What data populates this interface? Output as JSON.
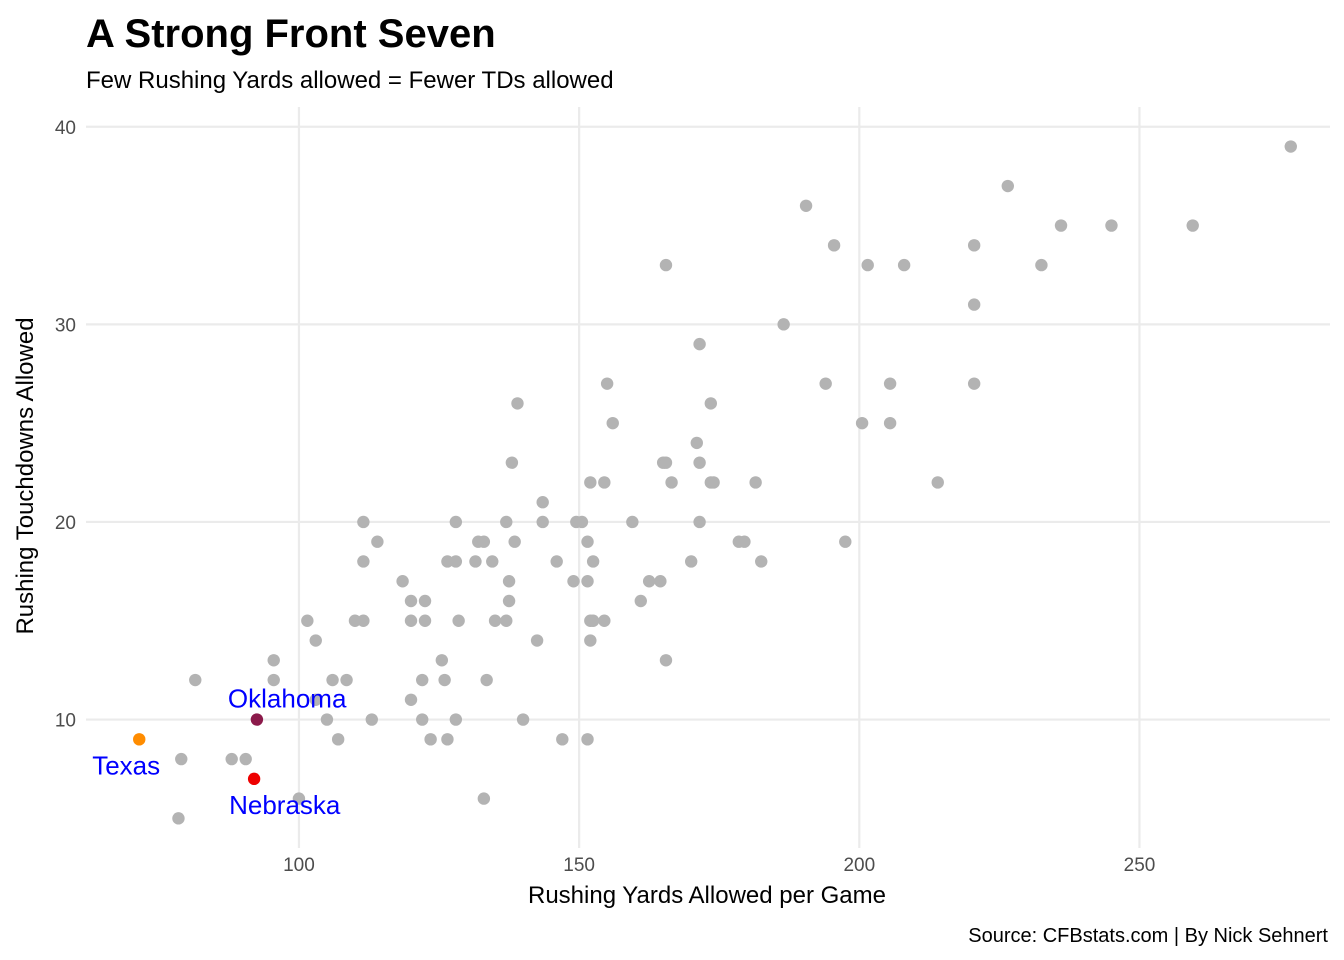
{
  "chart_data": {
    "type": "scatter",
    "title": "A Strong Front Seven",
    "subtitle": "Few Rushing Yards allowed = Fewer TDs allowed",
    "xlabel": "Rushing Yards Allowed per Game",
    "ylabel": "Rushing Touchdowns Allowed",
    "caption": "Source: CFBstats.com | By Nick Sehnert",
    "xlim": [
      62,
      284
    ],
    "ylim": [
      3.5,
      41
    ],
    "x_ticks": [
      100,
      150,
      200,
      250
    ],
    "y_ticks": [
      10,
      20,
      30,
      40
    ],
    "grid": true,
    "default_color": "#b3b3b3",
    "label_color": "#0000ff",
    "points": [
      {
        "x": 277,
        "y": 39
      },
      {
        "x": 226.5,
        "y": 37
      },
      {
        "x": 190.5,
        "y": 36
      },
      {
        "x": 236,
        "y": 35
      },
      {
        "x": 245,
        "y": 35
      },
      {
        "x": 259.5,
        "y": 35
      },
      {
        "x": 195.5,
        "y": 34
      },
      {
        "x": 220.5,
        "y": 34
      },
      {
        "x": 165.5,
        "y": 33
      },
      {
        "x": 201.5,
        "y": 33
      },
      {
        "x": 208,
        "y": 33
      },
      {
        "x": 232.5,
        "y": 33
      },
      {
        "x": 220.5,
        "y": 31
      },
      {
        "x": 186.5,
        "y": 30
      },
      {
        "x": 171.5,
        "y": 29
      },
      {
        "x": 155,
        "y": 27
      },
      {
        "x": 194,
        "y": 27
      },
      {
        "x": 205.5,
        "y": 27
      },
      {
        "x": 220.5,
        "y": 27
      },
      {
        "x": 139,
        "y": 26
      },
      {
        "x": 173.5,
        "y": 26
      },
      {
        "x": 156,
        "y": 25
      },
      {
        "x": 200.5,
        "y": 25
      },
      {
        "x": 205.5,
        "y": 25
      },
      {
        "x": 171,
        "y": 24
      },
      {
        "x": 138,
        "y": 23
      },
      {
        "x": 165,
        "y": 23
      },
      {
        "x": 165.5,
        "y": 23
      },
      {
        "x": 171.5,
        "y": 23
      },
      {
        "x": 152,
        "y": 22
      },
      {
        "x": 154.5,
        "y": 22
      },
      {
        "x": 166.5,
        "y": 22
      },
      {
        "x": 173.5,
        "y": 22
      },
      {
        "x": 174,
        "y": 22
      },
      {
        "x": 181.5,
        "y": 22
      },
      {
        "x": 214,
        "y": 22
      },
      {
        "x": 143.5,
        "y": 21
      },
      {
        "x": 111.5,
        "y": 20
      },
      {
        "x": 128,
        "y": 20
      },
      {
        "x": 137,
        "y": 20
      },
      {
        "x": 143.5,
        "y": 20
      },
      {
        "x": 149.5,
        "y": 20
      },
      {
        "x": 150.5,
        "y": 20
      },
      {
        "x": 159.5,
        "y": 20
      },
      {
        "x": 171.5,
        "y": 20
      },
      {
        "x": 114,
        "y": 19
      },
      {
        "x": 132,
        "y": 19
      },
      {
        "x": 133,
        "y": 19
      },
      {
        "x": 138.5,
        "y": 19
      },
      {
        "x": 151.5,
        "y": 19
      },
      {
        "x": 178.5,
        "y": 19
      },
      {
        "x": 179.5,
        "y": 19
      },
      {
        "x": 197.5,
        "y": 19
      },
      {
        "x": 111.5,
        "y": 18
      },
      {
        "x": 126.5,
        "y": 18
      },
      {
        "x": 128,
        "y": 18
      },
      {
        "x": 131.5,
        "y": 18
      },
      {
        "x": 134.5,
        "y": 18
      },
      {
        "x": 146,
        "y": 18
      },
      {
        "x": 152.5,
        "y": 18
      },
      {
        "x": 170,
        "y": 18
      },
      {
        "x": 182.5,
        "y": 18
      },
      {
        "x": 118.5,
        "y": 17
      },
      {
        "x": 137.5,
        "y": 17
      },
      {
        "x": 149,
        "y": 17
      },
      {
        "x": 151.5,
        "y": 17
      },
      {
        "x": 162.5,
        "y": 17
      },
      {
        "x": 164.5,
        "y": 17
      },
      {
        "x": 120,
        "y": 16
      },
      {
        "x": 122.5,
        "y": 16
      },
      {
        "x": 137.5,
        "y": 16
      },
      {
        "x": 161,
        "y": 16
      },
      {
        "x": 101.5,
        "y": 15
      },
      {
        "x": 110,
        "y": 15
      },
      {
        "x": 111.5,
        "y": 15
      },
      {
        "x": 120,
        "y": 15
      },
      {
        "x": 122.5,
        "y": 15
      },
      {
        "x": 128.5,
        "y": 15
      },
      {
        "x": 135,
        "y": 15
      },
      {
        "x": 137,
        "y": 15
      },
      {
        "x": 152,
        "y": 15
      },
      {
        "x": 152.5,
        "y": 15
      },
      {
        "x": 154.5,
        "y": 15
      },
      {
        "x": 103,
        "y": 14
      },
      {
        "x": 142.5,
        "y": 14
      },
      {
        "x": 152,
        "y": 14
      },
      {
        "x": 95.5,
        "y": 13
      },
      {
        "x": 125.5,
        "y": 13
      },
      {
        "x": 165.5,
        "y": 13
      },
      {
        "x": 81.5,
        "y": 12
      },
      {
        "x": 95.5,
        "y": 12
      },
      {
        "x": 106,
        "y": 12
      },
      {
        "x": 108.5,
        "y": 12
      },
      {
        "x": 122,
        "y": 12
      },
      {
        "x": 126,
        "y": 12
      },
      {
        "x": 133.5,
        "y": 12
      },
      {
        "x": 103,
        "y": 11
      },
      {
        "x": 120,
        "y": 11
      },
      {
        "x": 105,
        "y": 10
      },
      {
        "x": 113,
        "y": 10
      },
      {
        "x": 122,
        "y": 10
      },
      {
        "x": 128,
        "y": 10
      },
      {
        "x": 140,
        "y": 10
      },
      {
        "x": 107,
        "y": 9
      },
      {
        "x": 123.5,
        "y": 9
      },
      {
        "x": 126.5,
        "y": 9
      },
      {
        "x": 147,
        "y": 9
      },
      {
        "x": 151.5,
        "y": 9
      },
      {
        "x": 79,
        "y": 8
      },
      {
        "x": 88,
        "y": 8
      },
      {
        "x": 90.5,
        "y": 8
      },
      {
        "x": 100,
        "y": 6
      },
      {
        "x": 133,
        "y": 6
      },
      {
        "x": 78.5,
        "y": 5
      }
    ],
    "highlighted": [
      {
        "label": "Oklahoma",
        "x": 92.5,
        "y": 10,
        "color": "#8b1a4a",
        "label_anchor": "start",
        "label_dx": -29,
        "label_dy": -12
      },
      {
        "label": "Texas",
        "x": 71.5,
        "y": 9,
        "color": "#ff8c00",
        "label_anchor": "start",
        "label_dx": -47,
        "label_dy": 35
      },
      {
        "label": "Nebraska",
        "x": 92,
        "y": 7,
        "color": "#ee0000",
        "label_anchor": "start",
        "label_dx": -25,
        "label_dy": 35
      }
    ]
  }
}
